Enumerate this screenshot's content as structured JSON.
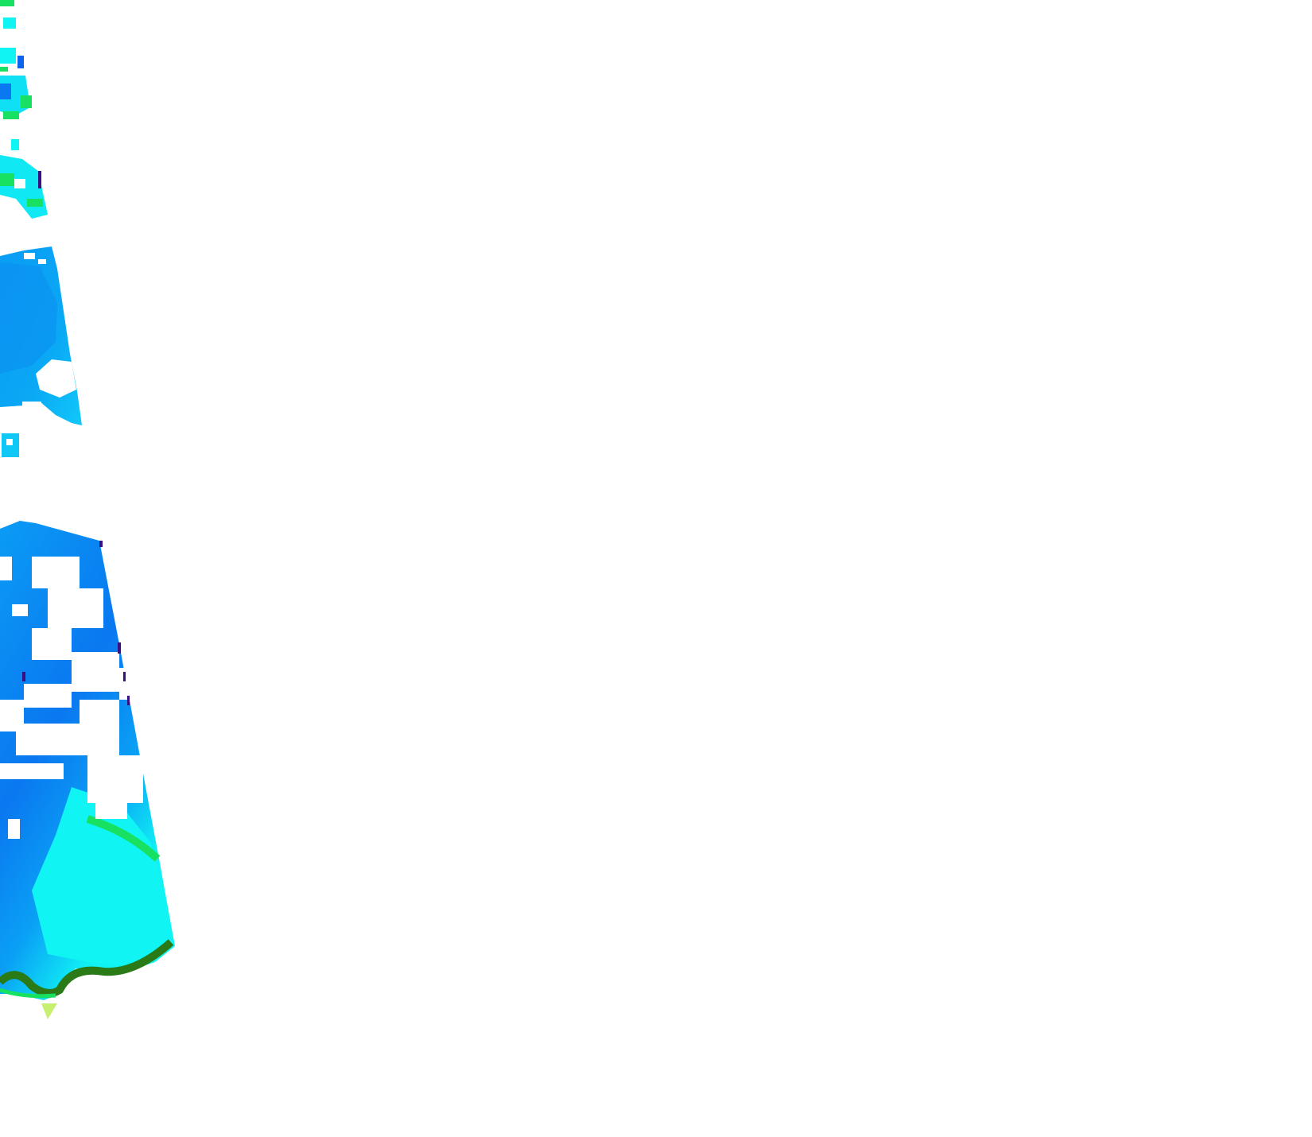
{
  "map": {
    "kind": "satellite swath raster",
    "palette": {
      "deep_blue": "#0a64f0",
      "blue": "#0a9cf5",
      "cyan": "#10f4f4",
      "green": "#18e060",
      "dark_green": "#2a7a18",
      "yellow_green": "#c8f070",
      "purple": "#3a1080",
      "background": "#ffffff"
    }
  }
}
